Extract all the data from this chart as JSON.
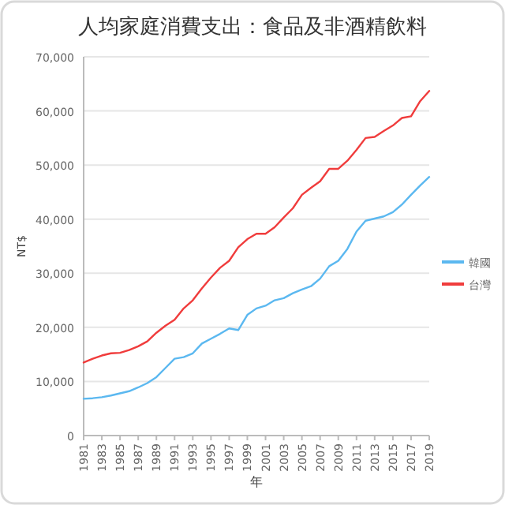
{
  "chart_data": {
    "type": "line",
    "title": "人均家庭消費支出：食品及非酒精飲料",
    "xlabel": "年",
    "ylabel": "NT$",
    "x": [
      1981,
      1982,
      1983,
      1984,
      1985,
      1986,
      1987,
      1988,
      1989,
      1990,
      1991,
      1992,
      1993,
      1994,
      1995,
      1996,
      1997,
      1998,
      1999,
      2000,
      2001,
      2002,
      2003,
      2004,
      2005,
      2006,
      2007,
      2008,
      2009,
      2010,
      2011,
      2012,
      2013,
      2014,
      2015,
      2016,
      2017,
      2018,
      2019
    ],
    "series": [
      {
        "name": "韓國",
        "color": "#5bb8f0",
        "values": [
          6800,
          6900,
          7100,
          7400,
          7800,
          8200,
          8900,
          9700,
          10800,
          12500,
          14200,
          14500,
          15200,
          17000,
          17900,
          18800,
          19800,
          19500,
          22300,
          23500,
          24000,
          25000,
          25400,
          26300,
          27000,
          27600,
          29000,
          31300,
          32300,
          34500,
          37700,
          39700,
          40100,
          40500,
          41300,
          42700,
          44500,
          46200,
          47800
        ]
      },
      {
        "name": "台灣",
        "color": "#f03c3c",
        "values": [
          13500,
          14200,
          14800,
          15200,
          15300,
          15800,
          16500,
          17400,
          19000,
          20300,
          21400,
          23500,
          25000,
          27200,
          29200,
          31000,
          32300,
          34800,
          36300,
          37300,
          37300,
          38500,
          40300,
          42000,
          44500,
          45800,
          47000,
          49300,
          49300,
          50800,
          52800,
          55000,
          55200,
          56300,
          57300,
          58700,
          59000,
          61800,
          63700
        ]
      }
    ],
    "xlim": [
      1981,
      2019
    ],
    "xticks": [
      1981,
      1983,
      1985,
      1987,
      1989,
      1991,
      1993,
      1995,
      1997,
      1999,
      2001,
      2003,
      2005,
      2007,
      2009,
      2011,
      2013,
      2015,
      2017,
      2019
    ],
    "ylim": [
      0,
      70000
    ],
    "yticks": [
      0,
      {
        "value": 10000,
        "label": "10,000"
      },
      {
        "value": 20000,
        "label": "20,000"
      },
      {
        "value": 30000,
        "label": "30,000"
      },
      {
        "value": 40000,
        "label": "40,000"
      },
      {
        "value": 50000,
        "label": "50,000"
      },
      {
        "value": 60000,
        "label": "60,000"
      },
      {
        "value": 70000,
        "label": "70,000"
      }
    ],
    "grid": "y",
    "legend": "right",
    "marker": "none",
    "line_style": "solid"
  }
}
